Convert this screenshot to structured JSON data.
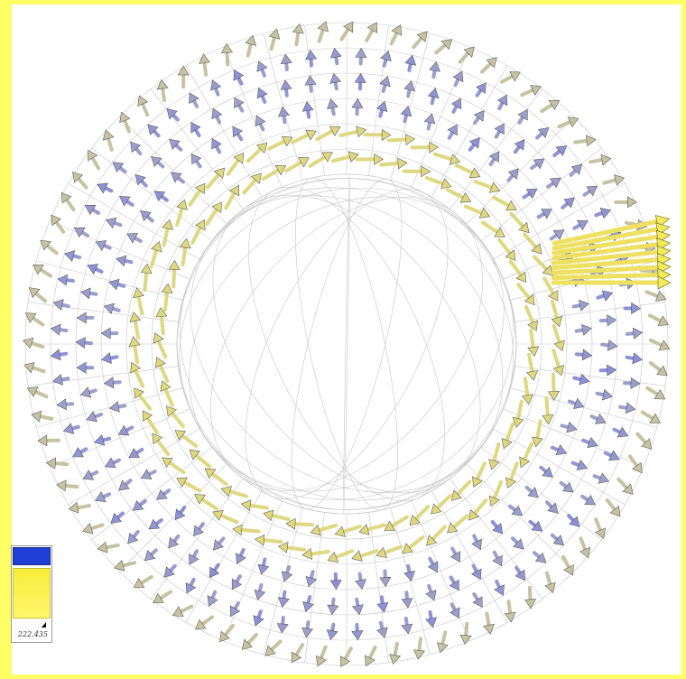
{
  "legend": {
    "max_value": "222.435",
    "low_color": "#1f3fd6",
    "high_color": "#f6ee3c"
  },
  "visualization": {
    "type": "3d-vector-field-torus",
    "icon": "arrow-glyph-icon",
    "colors": {
      "background": "#ffff66",
      "viewport": "#ffffff",
      "mesh": "#a8a8a8",
      "low_magnitude": "#8a8de0",
      "high_magnitude": "#efe76a"
    }
  }
}
